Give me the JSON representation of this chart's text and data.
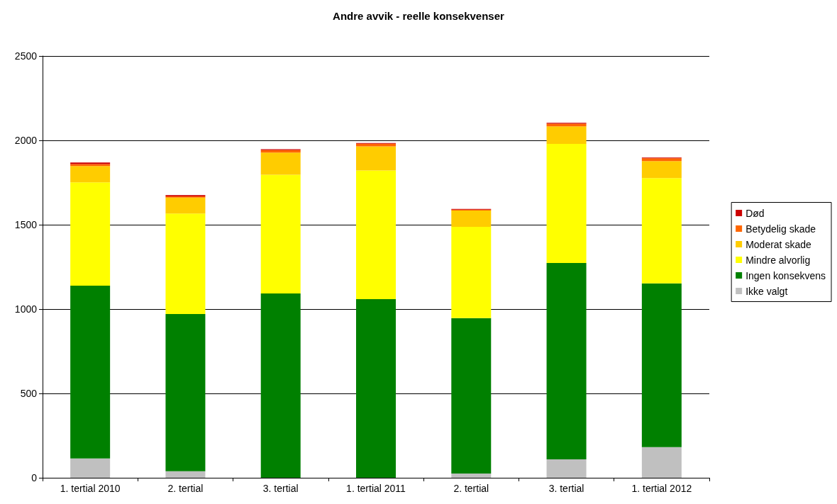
{
  "chart_data": {
    "type": "bar",
    "title": "Andre avvik - reelle konsekvenser",
    "stacked": true,
    "categories": [
      "1. tertial 2010",
      "2. tertial",
      "3. tertial",
      "1. tertial 2011",
      "2. tertial",
      "3. tertial",
      "1. tertial 2012"
    ],
    "series": [
      {
        "name": "Ikke valgt",
        "color": "#c0c0c0",
        "values": [
          115,
          39,
          null,
          null,
          25,
          109,
          182
        ]
      },
      {
        "name": "Ingen konsekvens",
        "color": "#008000",
        "values": [
          1024,
          932,
          1092,
          1059,
          921,
          1164,
          970
        ]
      },
      {
        "name": "Mindre alvorlig",
        "color": "#ffff00",
        "values": [
          612,
          595,
          704,
          762,
          541,
          706,
          624
        ]
      },
      {
        "name": "Moderat skade",
        "color": "#ffcc00",
        "values": [
          97,
          95,
          132,
          143,
          97,
          104,
          101
        ]
      },
      {
        "name": "Betydelig skade",
        "color": "#ff6600",
        "values": [
          11,
          7,
          14,
          16,
          5,
          16,
          17
        ]
      },
      {
        "name": "Død",
        "color": "#cc0000",
        "values": [
          10,
          7,
          6,
          4,
          5,
          5,
          4
        ]
      }
    ],
    "ylim": [
      0,
      2500
    ],
    "yticks": [
      0,
      500,
      1000,
      1500,
      2000,
      2500
    ],
    "grid": "y",
    "legend": "right"
  }
}
